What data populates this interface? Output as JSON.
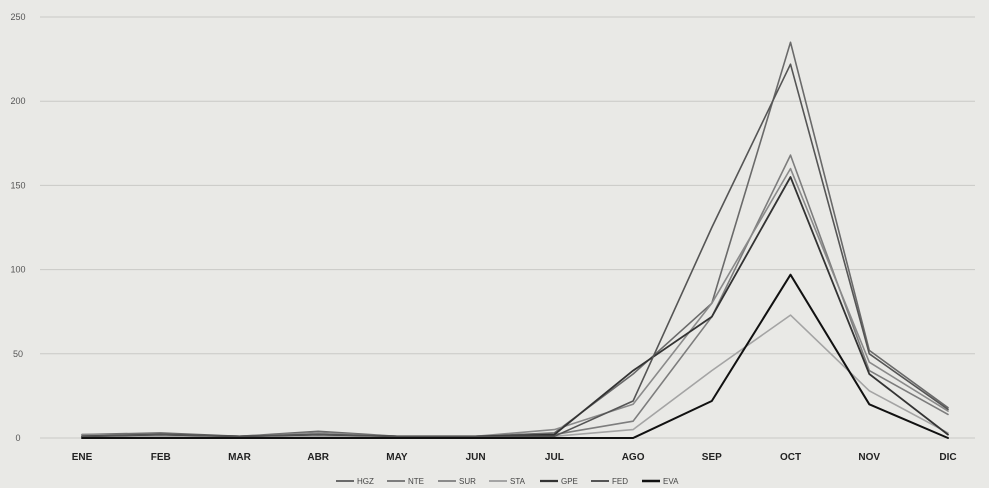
{
  "chart_data": {
    "type": "line",
    "title": "",
    "xlabel": "",
    "ylabel": "",
    "ylim": [
      0,
      250
    ],
    "yticks": [
      0,
      50,
      100,
      150,
      200,
      250
    ],
    "grid": true,
    "legend_position": "bottom",
    "categories": [
      "ENE",
      "FEB",
      "MAR",
      "ABR",
      "MAY",
      "JUN",
      "JUL",
      "AGO",
      "SEP",
      "OCT",
      "NOV",
      "DIC"
    ],
    "series": [
      {
        "name": "HGZ",
        "color": "#6a6a6a",
        "width": 1.6,
        "values": [
          2,
          3,
          1,
          4,
          1,
          1,
          3,
          38,
          80,
          235,
          52,
          18
        ]
      },
      {
        "name": "NTE",
        "color": "#7d7d7d",
        "width": 1.6,
        "values": [
          1,
          2,
          0,
          2,
          1,
          1,
          2,
          10,
          72,
          168,
          40,
          14
        ]
      },
      {
        "name": "SUR",
        "color": "#8a8a8a",
        "width": 1.6,
        "values": [
          2,
          2,
          1,
          3,
          1,
          1,
          5,
          20,
          80,
          160,
          45,
          16
        ]
      },
      {
        "name": "STA",
        "color": "#a4a4a4",
        "width": 1.6,
        "values": [
          1,
          1,
          0,
          1,
          0,
          1,
          1,
          5,
          40,
          73,
          28,
          3
        ]
      },
      {
        "name": "GPE",
        "color": "#333333",
        "width": 1.8,
        "values": [
          1,
          2,
          1,
          2,
          1,
          1,
          2,
          40,
          72,
          155,
          38,
          2
        ]
      },
      {
        "name": "FED",
        "color": "#555555",
        "width": 1.6,
        "values": [
          1,
          2,
          1,
          2,
          1,
          1,
          1,
          22,
          125,
          222,
          50,
          17
        ]
      },
      {
        "name": "EVA",
        "color": "#111111",
        "width": 2.0,
        "values": [
          0,
          0,
          0,
          0,
          0,
          0,
          0,
          0,
          22,
          97,
          20,
          0
        ]
      }
    ]
  }
}
